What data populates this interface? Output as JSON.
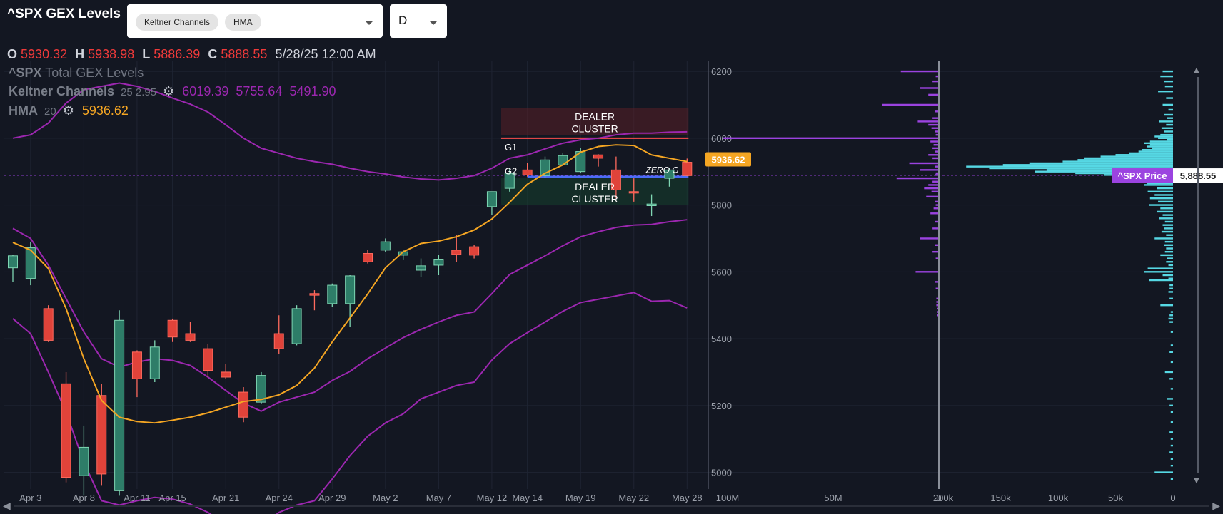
{
  "header": {
    "title": "^SPX GEX Levels",
    "indicators": [
      "Keltner Channels",
      "HMA"
    ],
    "timeframe": "D"
  },
  "ohlc": {
    "o_label": "O",
    "o": "5930.32",
    "h_label": "H",
    "h": "5938.98",
    "l_label": "L",
    "l": "5886.39",
    "c_label": "C",
    "c": "5888.55",
    "datetime": "5/28/25 12:00 AM"
  },
  "legend": {
    "gex": {
      "symbol": "^SPX",
      "name": "Total GEX Levels"
    },
    "keltner": {
      "name": "Keltner Channels",
      "params": "25 2.95",
      "upper": "6019.39",
      "middle": "5755.64",
      "lower": "5491.90"
    },
    "hma": {
      "name": "HMA",
      "params": "20",
      "value": "5936.62"
    }
  },
  "colors": {
    "background": "#131722",
    "bull": "#2e7d68",
    "bear": "#e0433a",
    "keltner": "#9c27b0",
    "hma": "#f5a623",
    "gex_bar": "#9b43e0",
    "profile_bar": "#56d8e4",
    "zero_gamma": "#4a6cf7",
    "dealer_upper": "#ff4d4d",
    "dealer_lower": "#2f9e5a"
  },
  "icons": {
    "gear": "gear-icon",
    "caret": "chevron-down-icon",
    "scroll_left": "arrow-left-icon",
    "scroll_up": "arrow-up-icon",
    "scroll_down": "arrow-down-icon"
  },
  "chart_data": {
    "type": "candlestick",
    "price_axis": {
      "ticks": [
        5000,
        5200,
        5400,
        5600,
        5800,
        6000,
        6200
      ],
      "range": [
        4950,
        6230
      ]
    },
    "x_tick_labels": [
      {
        "i": 1,
        "label": "Apr 3"
      },
      {
        "i": 4,
        "label": "Apr 8"
      },
      {
        "i": 7,
        "label": "Apr 11"
      },
      {
        "i": 9,
        "label": "Apr 15"
      },
      {
        "i": 12,
        "label": "Apr 21"
      },
      {
        "i": 15,
        "label": "Apr 24"
      },
      {
        "i": 18,
        "label": "Apr 29"
      },
      {
        "i": 21,
        "label": "May 2"
      },
      {
        "i": 24,
        "label": "May 7"
      },
      {
        "i": 27,
        "label": "May 12"
      },
      {
        "i": 29,
        "label": "May 14"
      },
      {
        "i": 32,
        "label": "May 19"
      },
      {
        "i": 35,
        "label": "May 22"
      },
      {
        "i": 38,
        "label": "May 28"
      }
    ],
    "candles": [
      {
        "o": 5612,
        "h": 5650,
        "l": 5570,
        "c": 5648
      },
      {
        "o": 5580,
        "h": 5690,
        "l": 5560,
        "c": 5672
      },
      {
        "o": 5490,
        "h": 5500,
        "l": 5390,
        "c": 5395
      },
      {
        "o": 5265,
        "h": 5300,
        "l": 4970,
        "c": 4985
      },
      {
        "o": 4990,
        "h": 5140,
        "l": 4930,
        "c": 5075
      },
      {
        "o": 5230,
        "h": 5265,
        "l": 4960,
        "c": 4995
      },
      {
        "o": 4945,
        "h": 5485,
        "l": 4930,
        "c": 5455
      },
      {
        "o": 5360,
        "h": 5365,
        "l": 5225,
        "c": 5280
      },
      {
        "o": 5280,
        "h": 5395,
        "l": 5270,
        "c": 5375
      },
      {
        "o": 5455,
        "h": 5460,
        "l": 5390,
        "c": 5405
      },
      {
        "o": 5415,
        "h": 5450,
        "l": 5390,
        "c": 5395
      },
      {
        "o": 5370,
        "h": 5385,
        "l": 5285,
        "c": 5305
      },
      {
        "o": 5300,
        "h": 5325,
        "l": 5280,
        "c": 5285
      },
      {
        "o": 5240,
        "h": 5255,
        "l": 5150,
        "c": 5165
      },
      {
        "o": 5210,
        "h": 5300,
        "l": 5205,
        "c": 5290
      },
      {
        "o": 5415,
        "h": 5470,
        "l": 5355,
        "c": 5370
      },
      {
        "o": 5385,
        "h": 5500,
        "l": 5380,
        "c": 5490
      },
      {
        "o": 5535,
        "h": 5545,
        "l": 5485,
        "c": 5530
      },
      {
        "o": 5505,
        "h": 5565,
        "l": 5495,
        "c": 5560
      },
      {
        "o": 5505,
        "h": 5590,
        "l": 5435,
        "c": 5588
      },
      {
        "o": 5655,
        "h": 5665,
        "l": 5625,
        "c": 5630
      },
      {
        "o": 5665,
        "h": 5700,
        "l": 5660,
        "c": 5690
      },
      {
        "o": 5650,
        "h": 5665,
        "l": 5635,
        "c": 5660
      },
      {
        "o": 5605,
        "h": 5640,
        "l": 5585,
        "c": 5618
      },
      {
        "o": 5620,
        "h": 5650,
        "l": 5590,
        "c": 5636
      },
      {
        "o": 5665,
        "h": 5710,
        "l": 5630,
        "c": 5652
      },
      {
        "o": 5675,
        "h": 5680,
        "l": 5640,
        "c": 5650
      },
      {
        "o": 5795,
        "h": 5840,
        "l": 5770,
        "c": 5840
      },
      {
        "o": 5850,
        "h": 5910,
        "l": 5840,
        "c": 5895
      },
      {
        "o": 5905,
        "h": 5925,
        "l": 5885,
        "c": 5890
      },
      {
        "o": 5888,
        "h": 5945,
        "l": 5882,
        "c": 5935
      },
      {
        "o": 5920,
        "h": 5955,
        "l": 5918,
        "c": 5948
      },
      {
        "o": 5900,
        "h": 5970,
        "l": 5895,
        "c": 5960
      },
      {
        "o": 5950,
        "h": 5952,
        "l": 5915,
        "c": 5940
      },
      {
        "o": 5905,
        "h": 5945,
        "l": 5820,
        "c": 5845
      },
      {
        "o": 5840,
        "h": 5880,
        "l": 5810,
        "c": 5838
      },
      {
        "o": 5798,
        "h": 5832,
        "l": 5767,
        "c": 5803
      },
      {
        "o": 5880,
        "h": 5910,
        "l": 5855,
        "c": 5905
      },
      {
        "o": 5928,
        "h": 5939,
        "l": 5886,
        "c": 5888
      }
    ],
    "hma": [
      5688,
      5665,
      5610,
      5490,
      5340,
      5215,
      5165,
      5152,
      5148,
      5156,
      5165,
      5178,
      5195,
      5212,
      5218,
      5232,
      5260,
      5312,
      5390,
      5462,
      5534,
      5612,
      5660,
      5685,
      5692,
      5705,
      5725,
      5758,
      5808,
      5862,
      5895,
      5920,
      5958,
      5975,
      5980,
      5978,
      5950,
      5940,
      5930
    ],
    "keltner_upper": [
      6000,
      6010,
      6045,
      6105,
      6145,
      6155,
      6165,
      6155,
      6140,
      6120,
      6102,
      6078,
      6040,
      6000,
      5970,
      5955,
      5940,
      5930,
      5922,
      5910,
      5900,
      5893,
      5884,
      5878,
      5875,
      5880,
      5888,
      5910,
      5940,
      5950,
      5968,
      5985,
      5995,
      6000,
      6010,
      6015,
      6015,
      6018,
      6019
    ],
    "keltner_middle": [
      5730,
      5700,
      5620,
      5520,
      5420,
      5340,
      5315,
      5330,
      5340,
      5335,
      5320,
      5285,
      5245,
      5207,
      5183,
      5210,
      5225,
      5240,
      5275,
      5302,
      5340,
      5372,
      5403,
      5428,
      5450,
      5470,
      5480,
      5535,
      5592,
      5620,
      5648,
      5678,
      5705,
      5720,
      5733,
      5740,
      5742,
      5750,
      5756
    ],
    "keltner_lower": [
      5460,
      5415,
      5300,
      5180,
      5030,
      4915,
      4902,
      4915,
      4925,
      4920,
      4905,
      4880,
      4845,
      4815,
      4840,
      4880,
      4902,
      4915,
      4980,
      5050,
      5108,
      5148,
      5175,
      5220,
      5240,
      5260,
      5270,
      5336,
      5385,
      5418,
      5450,
      5482,
      5508,
      5518,
      5528,
      5538,
      5512,
      5514,
      5492
    ],
    "levels": {
      "dealer_upper": [
        6010,
        6090
      ],
      "dealer_lower": [
        5800,
        5880
      ],
      "g1": 6000,
      "zero_gamma": 5885,
      "last_price": 5888.55,
      "hma_price": 5936.62
    },
    "level_labels": {
      "dealer_upper": "DEALER\nCLUSTER",
      "dealer_lower": "DEALER\nCLUSTER",
      "g1": "G1",
      "g2": "G2",
      "zero_gamma": "ZERO G",
      "hma_tag": "5936.62",
      "price_tag_name": "^SPX Price",
      "price_tag_value": "5,888.55"
    },
    "gex_axis": {
      "ticks": [
        {
          "v": 100000000,
          "label": "100M"
        },
        {
          "v": 50000000,
          "label": "50M"
        },
        {
          "v": 0,
          "label": "0"
        }
      ]
    },
    "gex_bars": [
      [
        6200,
        18000000.0
      ],
      [
        6185,
        1500000.0
      ],
      [
        6170,
        3000000.0
      ],
      [
        6150,
        9000000.0
      ],
      [
        6130,
        5000000.0
      ],
      [
        6100,
        27000000.0
      ],
      [
        6080,
        2000000.0
      ],
      [
        6060,
        3000000.0
      ],
      [
        6050,
        10000000.0
      ],
      [
        6040,
        5000000.0
      ],
      [
        6030,
        3500000.0
      ],
      [
        6020,
        2000000.0
      ],
      [
        6010,
        1500000.0
      ],
      [
        6000,
        102000000.0
      ],
      [
        5990,
        4000000.0
      ],
      [
        5980,
        2500000.0
      ],
      [
        5970,
        3000000.0
      ],
      [
        5960,
        2000000.0
      ],
      [
        5950,
        5000000.0
      ],
      [
        5940,
        3000000.0
      ],
      [
        5925,
        14000000.0
      ],
      [
        5915,
        2000000.0
      ],
      [
        5905,
        9000000.0
      ],
      [
        5895,
        1500000.0
      ],
      [
        5890,
        2000000.0
      ],
      [
        5880,
        20000000.0
      ],
      [
        5870,
        3000000.0
      ],
      [
        5860,
        5000000.0
      ],
      [
        5850,
        7000000.0
      ],
      [
        5840,
        3500000.0
      ],
      [
        5825,
        6000000.0
      ],
      [
        5810,
        2000000.0
      ],
      [
        5800,
        1500000.0
      ],
      [
        5790,
        2500000.0
      ],
      [
        5775,
        4000000.0
      ],
      [
        5750,
        2000000.0
      ],
      [
        5730,
        3000000.0
      ],
      [
        5700,
        9000000.0
      ],
      [
        5680,
        2000000.0
      ],
      [
        5660,
        3000000.0
      ],
      [
        5640,
        1500000.0
      ],
      [
        5600,
        11000000.0
      ],
      [
        5570,
        2000000.0
      ],
      [
        5550,
        1500000.0
      ],
      [
        5520,
        1200000.0
      ],
      [
        5510,
        1200000.0
      ],
      [
        5500,
        1200000.0
      ],
      [
        5490,
        800000.0
      ],
      [
        5480,
        800000.0
      ],
      [
        5470,
        800000.0
      ]
    ],
    "profile_axis": {
      "ticks": [
        {
          "v": 200000,
          "label": "200k"
        },
        {
          "v": 150000,
          "label": "150k"
        },
        {
          "v": 100000,
          "label": "100k"
        },
        {
          "v": 50000,
          "label": "50k"
        },
        {
          "v": 0,
          "label": "0"
        }
      ]
    },
    "profile_bars": [
      [
        6200,
        9000
      ],
      [
        6185,
        11000
      ],
      [
        6170,
        8000
      ],
      [
        6155,
        7000
      ],
      [
        6140,
        13000
      ],
      [
        6120,
        6000
      ],
      [
        6100,
        9000
      ],
      [
        6085,
        4000
      ],
      [
        6070,
        8000
      ],
      [
        6060,
        5000
      ],
      [
        6050,
        12000
      ],
      [
        6040,
        6000
      ],
      [
        6030,
        10000
      ],
      [
        6020,
        8000
      ],
      [
        6010,
        11000
      ],
      [
        6005,
        16000
      ],
      [
        6000,
        13000
      ],
      [
        5995,
        5000
      ],
      [
        5990,
        20000
      ],
      [
        5985,
        25000
      ],
      [
        5980,
        20000
      ],
      [
        5975,
        23000
      ],
      [
        5970,
        18000
      ],
      [
        5965,
        27000
      ],
      [
        5960,
        30000
      ],
      [
        5955,
        38000
      ],
      [
        5950,
        50000
      ],
      [
        5945,
        63000
      ],
      [
        5940,
        77000
      ],
      [
        5935,
        83000
      ],
      [
        5930,
        96000
      ],
      [
        5925,
        125000
      ],
      [
        5920,
        148000
      ],
      [
        5915,
        180000
      ],
      [
        5910,
        160000
      ],
      [
        5905,
        110000
      ],
      [
        5900,
        120000
      ],
      [
        5895,
        85000
      ],
      [
        5890,
        60000
      ],
      [
        5885,
        50000
      ],
      [
        5880,
        45000
      ],
      [
        5875,
        32000
      ],
      [
        5870,
        28000
      ],
      [
        5865,
        23000
      ],
      [
        5860,
        25000
      ],
      [
        5850,
        14000
      ],
      [
        5840,
        22000
      ],
      [
        5830,
        16000
      ],
      [
        5820,
        20000
      ],
      [
        5810,
        13000
      ],
      [
        5800,
        21000
      ],
      [
        5790,
        11000
      ],
      [
        5780,
        14000
      ],
      [
        5770,
        9000
      ],
      [
        5760,
        12000
      ],
      [
        5750,
        7000
      ],
      [
        5740,
        9000
      ],
      [
        5730,
        8000
      ],
      [
        5720,
        10000
      ],
      [
        5710,
        6000
      ],
      [
        5700,
        16000
      ],
      [
        5690,
        7000
      ],
      [
        5680,
        8000
      ],
      [
        5670,
        6000
      ],
      [
        5660,
        7000
      ],
      [
        5650,
        11000
      ],
      [
        5640,
        5000
      ],
      [
        5630,
        6000
      ],
      [
        5620,
        4000
      ],
      [
        5610,
        22000
      ],
      [
        5600,
        25000
      ],
      [
        5590,
        9000
      ],
      [
        5580,
        4000
      ],
      [
        5575,
        21000
      ],
      [
        5560,
        3000
      ],
      [
        5550,
        3000
      ],
      [
        5540,
        4000
      ],
      [
        5520,
        3000
      ],
      [
        5500,
        11000
      ],
      [
        5480,
        2000
      ],
      [
        5470,
        3000
      ],
      [
        5460,
        4000
      ],
      [
        5450,
        3000
      ],
      [
        5420,
        2000
      ],
      [
        5380,
        2000
      ],
      [
        5360,
        3000
      ],
      [
        5330,
        2000
      ],
      [
        5300,
        7000
      ],
      [
        5280,
        3000
      ],
      [
        5250,
        2000
      ],
      [
        5220,
        5000
      ],
      [
        5200,
        3000
      ],
      [
        5180,
        2000
      ],
      [
        5150,
        2000
      ],
      [
        5120,
        3000
      ],
      [
        5100,
        2000
      ],
      [
        5080,
        2000
      ],
      [
        5060,
        3000
      ],
      [
        5040,
        2000
      ],
      [
        5020,
        2000
      ],
      [
        5000,
        16000
      ],
      [
        4980,
        2000
      ]
    ]
  }
}
